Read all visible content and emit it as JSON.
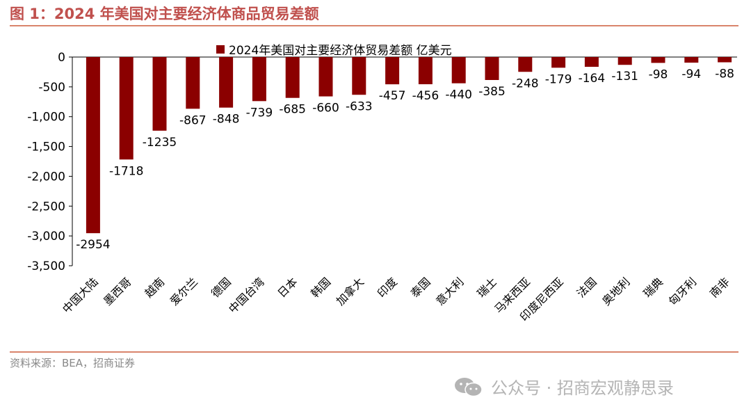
{
  "figure": {
    "title": "图 1：2024 年美国对主要经济体商品贸易差额",
    "source": "资料来源：BEA，招商证券",
    "watermark": "公众号 · 招商宏观静思录"
  },
  "colors": {
    "bar": "#8b0000",
    "accent": "#c0504d",
    "rule": "#d9846b"
  },
  "chart_data": {
    "type": "bar",
    "legend": "2024年美国对主要经济体贸易差额 亿美元",
    "categories": [
      "中国大陆",
      "墨西哥",
      "越南",
      "爱尔兰",
      "德国",
      "中国台湾",
      "日本",
      "韩国",
      "加拿大",
      "印度",
      "泰国",
      "意大利",
      "瑞士",
      "马来西亚",
      "印度尼西亚",
      "法国",
      "奥地利",
      "瑞典",
      "匈牙利",
      "南非"
    ],
    "values": [
      -2954,
      -1718,
      -1235,
      -867,
      -848,
      -739,
      -685,
      -660,
      -633,
      -457,
      -456,
      -440,
      -385,
      -248,
      -179,
      -164,
      -131,
      -98,
      -94,
      -88
    ],
    "ylim": [
      -3500,
      0
    ],
    "yticks": [
      0,
      -500,
      -1000,
      -1500,
      -2000,
      -2500,
      -3000,
      -3500
    ],
    "ytick_labels": [
      "0",
      "-500",
      "-1,000",
      "-1,500",
      "-2,000",
      "-2,500",
      "-3,000",
      "-3,500"
    ],
    "grid": false,
    "legend_position": "top"
  }
}
